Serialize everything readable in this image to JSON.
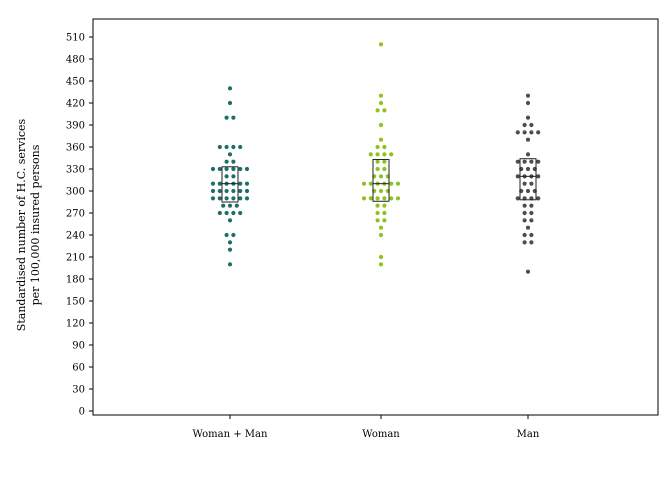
{
  "chart_data": {
    "type": "scatter",
    "subtype": "dot plot with median and interquartile box",
    "ylabel_line1": "Standardised number of H.C. services",
    "ylabel_line2": "per 100,000 insured persons",
    "ylim": [
      0,
      525
    ],
    "yticks": [
      0,
      30,
      60,
      90,
      120,
      150,
      180,
      210,
      240,
      270,
      300,
      330,
      360,
      390,
      420,
      450,
      480,
      510
    ],
    "grid": false,
    "legend": "none",
    "categories": [
      "Woman + Man",
      "Woman",
      "Man"
    ],
    "series": [
      {
        "color": "#1f6e6a",
        "box": {
          "q1": 285,
          "median": 310,
          "q3": 333
        },
        "values": [
          440,
          420,
          400,
          400,
          360,
          360,
          360,
          360,
          350,
          340,
          340,
          330,
          330,
          330,
          330,
          330,
          330,
          320,
          320,
          310,
          310,
          310,
          310,
          310,
          310,
          300,
          300,
          300,
          300,
          300,
          300,
          290,
          290,
          290,
          290,
          290,
          290,
          280,
          280,
          280,
          270,
          270,
          270,
          270,
          260,
          240,
          240,
          230,
          220,
          200
        ]
      },
      {
        "color": "#8dc21f",
        "box": {
          "q1": 286,
          "median": 310,
          "q3": 343
        },
        "values": [
          500,
          430,
          420,
          410,
          410,
          390,
          370,
          360,
          360,
          350,
          350,
          350,
          350,
          340,
          340,
          330,
          330,
          320,
          320,
          320,
          310,
          310,
          310,
          310,
          310,
          310,
          300,
          300,
          300,
          290,
          290,
          290,
          290,
          290,
          290,
          280,
          280,
          270,
          270,
          260,
          260,
          250,
          240,
          210,
          200
        ]
      },
      {
        "color": "#4d4d4d",
        "box": {
          "q1": 288,
          "median": 320,
          "q3": 344
        },
        "values": [
          430,
          420,
          400,
          390,
          390,
          380,
          380,
          380,
          380,
          370,
          350,
          340,
          340,
          340,
          340,
          330,
          330,
          330,
          320,
          320,
          320,
          320,
          310,
          310,
          300,
          300,
          300,
          290,
          290,
          290,
          290,
          280,
          280,
          270,
          270,
          260,
          260,
          250,
          240,
          240,
          230,
          230,
          190
        ]
      }
    ]
  }
}
